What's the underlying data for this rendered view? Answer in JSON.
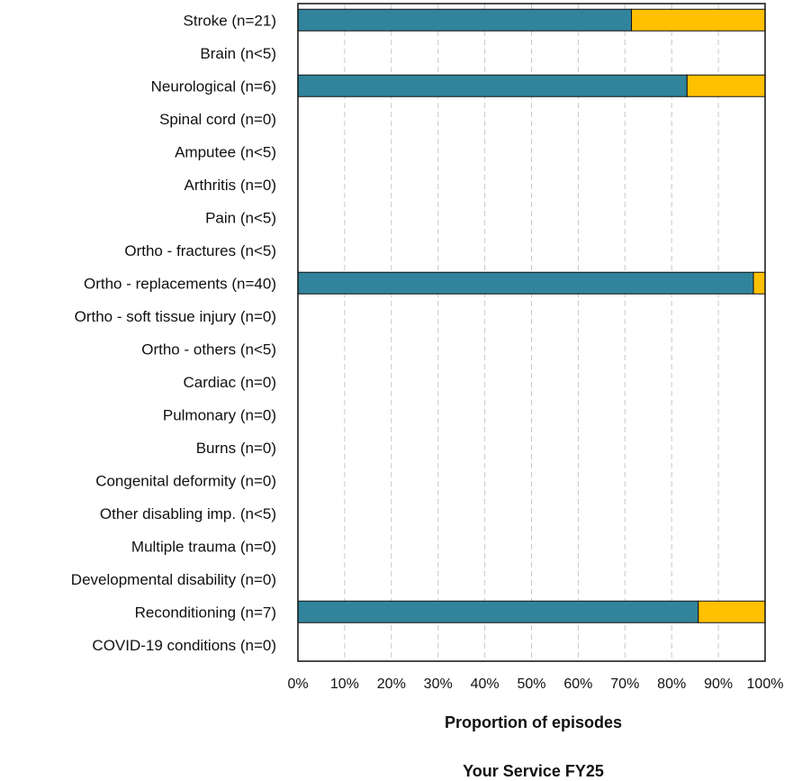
{
  "chart_data": {
    "type": "bar",
    "orientation": "horizontal",
    "stacked": true,
    "title": "Your Service FY25",
    "xlabel": "Proportion of episodes",
    "ylabel": "",
    "xlim": [
      0,
      100
    ],
    "grid": true,
    "x_ticks": [
      "0%",
      "10%",
      "20%",
      "30%",
      "40%",
      "50%",
      "60%",
      "70%",
      "80%",
      "90%",
      "100%"
    ],
    "categories": [
      "Stroke (n=21)",
      "Brain (n<5)",
      "Neurological (n=6)",
      "Spinal cord (n=0)",
      "Amputee (n<5)",
      "Arthritis (n=0)",
      "Pain (n<5)",
      "Ortho - fractures (n<5)",
      "Ortho - replacements (n=40)",
      "Ortho - soft tissue injury (n=0)",
      "Ortho - others (n<5)",
      "Cardiac (n=0)",
      "Pulmonary (n=0)",
      "Burns (n=0)",
      "Congenital deformity (n=0)",
      "Other disabling imp. (n<5)",
      "Multiple trauma (n=0)",
      "Developmental disability (n=0)",
      "Reconditioning (n=7)",
      "COVID-19 conditions (n=0)"
    ],
    "series": [
      {
        "color": "#31849b",
        "values": [
          71.4,
          0,
          83.3,
          0,
          0,
          0,
          0,
          0,
          97.5,
          0,
          0,
          0,
          0,
          0,
          0,
          0,
          0,
          0,
          85.7,
          0
        ]
      },
      {
        "color": "#ffc000",
        "values": [
          28.6,
          0,
          16.7,
          0,
          0,
          0,
          0,
          0,
          2.5,
          0,
          0,
          0,
          0,
          0,
          0,
          0,
          0,
          0,
          14.3,
          0
        ]
      }
    ]
  }
}
